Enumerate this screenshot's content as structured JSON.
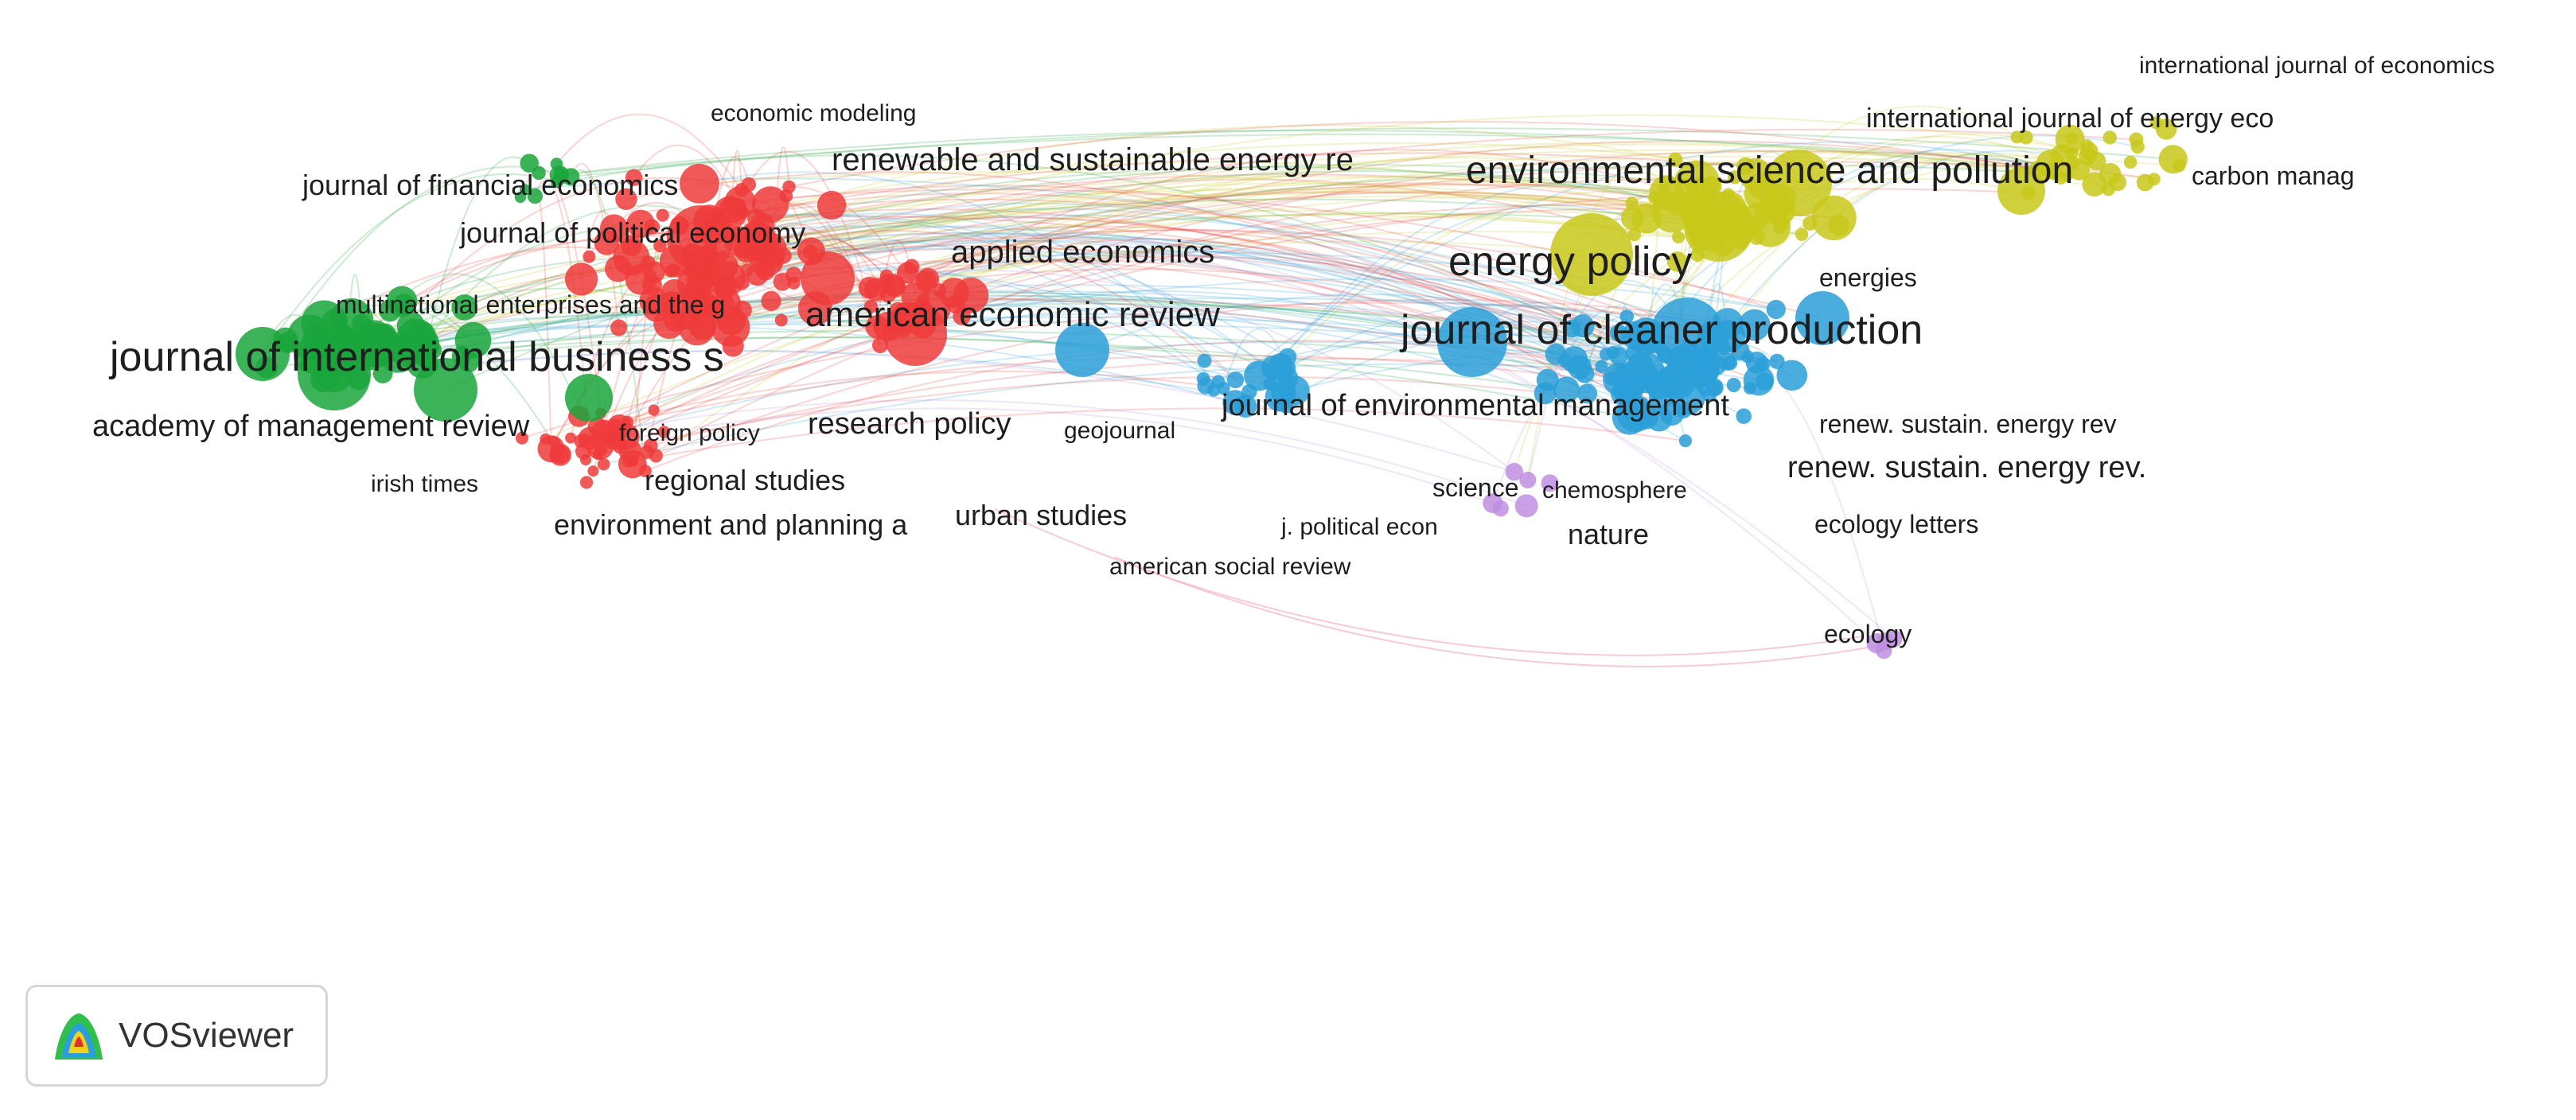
{
  "app": {
    "name": "VOSviewer"
  },
  "colors": {
    "cluster1": "#ee3b3b",
    "cluster2": "#1aa63c",
    "cluster3": "#2a9fd8",
    "cluster4": "#c8c81a",
    "cluster5": "#c08ee0"
  },
  "labels": [
    {
      "text": "journal of international business s",
      "cluster": 2,
      "size": "xl"
    },
    {
      "text": "academy of management review",
      "cluster": 2,
      "size": "l"
    },
    {
      "text": "journal of financial economics",
      "cluster": 2,
      "size": "m"
    },
    {
      "text": "journal of political economy",
      "cluster": 1,
      "size": "m"
    },
    {
      "text": "multinational enterprises and the g",
      "cluster": 2,
      "size": "s"
    },
    {
      "text": "economic modeling",
      "cluster": 1,
      "size": "s"
    },
    {
      "text": "renewable and sustainable energy re",
      "cluster": 1,
      "size": "m"
    },
    {
      "text": "applied economics",
      "cluster": 1,
      "size": "m"
    },
    {
      "text": "american economic review",
      "cluster": 1,
      "size": "l"
    },
    {
      "text": "research policy",
      "cluster": 2,
      "size": "m"
    },
    {
      "text": "foreign policy",
      "cluster": 1,
      "size": "s"
    },
    {
      "text": "geojournal",
      "cluster": 3,
      "size": "s"
    },
    {
      "text": "regional studies",
      "cluster": 1,
      "size": "m"
    },
    {
      "text": "irish times",
      "cluster": 1,
      "size": "s"
    },
    {
      "text": "environment and planning a",
      "cluster": 1,
      "size": "m"
    },
    {
      "text": "urban studies",
      "cluster": 1,
      "size": "m"
    },
    {
      "text": "j. political econ",
      "cluster": 3,
      "size": "s"
    },
    {
      "text": "american social review",
      "cluster": 3,
      "size": "s"
    },
    {
      "text": "environmental science and pollution",
      "cluster": 4,
      "size": "l"
    },
    {
      "text": "energy policy",
      "cluster": 4,
      "size": "xl"
    },
    {
      "text": "journal of cleaner production",
      "cluster": 3,
      "size": "xl"
    },
    {
      "text": "journal of environmental management",
      "cluster": 3,
      "size": "m"
    },
    {
      "text": "energies",
      "cluster": 4,
      "size": "s"
    },
    {
      "text": "international journal of economics",
      "cluster": 4,
      "size": "s"
    },
    {
      "text": "international journal of energy eco",
      "cluster": 4,
      "size": "m"
    },
    {
      "text": "carbon manag",
      "cluster": 4,
      "size": "s"
    },
    {
      "text": "renew. sustain. energy rev",
      "cluster": 3,
      "size": "s"
    },
    {
      "text": "renew. sustain. energy rev.",
      "cluster": 3,
      "size": "m"
    },
    {
      "text": "science",
      "cluster": 5,
      "size": "s"
    },
    {
      "text": "chemosphere",
      "cluster": 3,
      "size": "s"
    },
    {
      "text": "nature",
      "cluster": 5,
      "size": "m"
    },
    {
      "text": "ecology letters",
      "cluster": 3,
      "size": "s"
    },
    {
      "text": "ecology",
      "cluster": 5,
      "size": "s"
    }
  ]
}
